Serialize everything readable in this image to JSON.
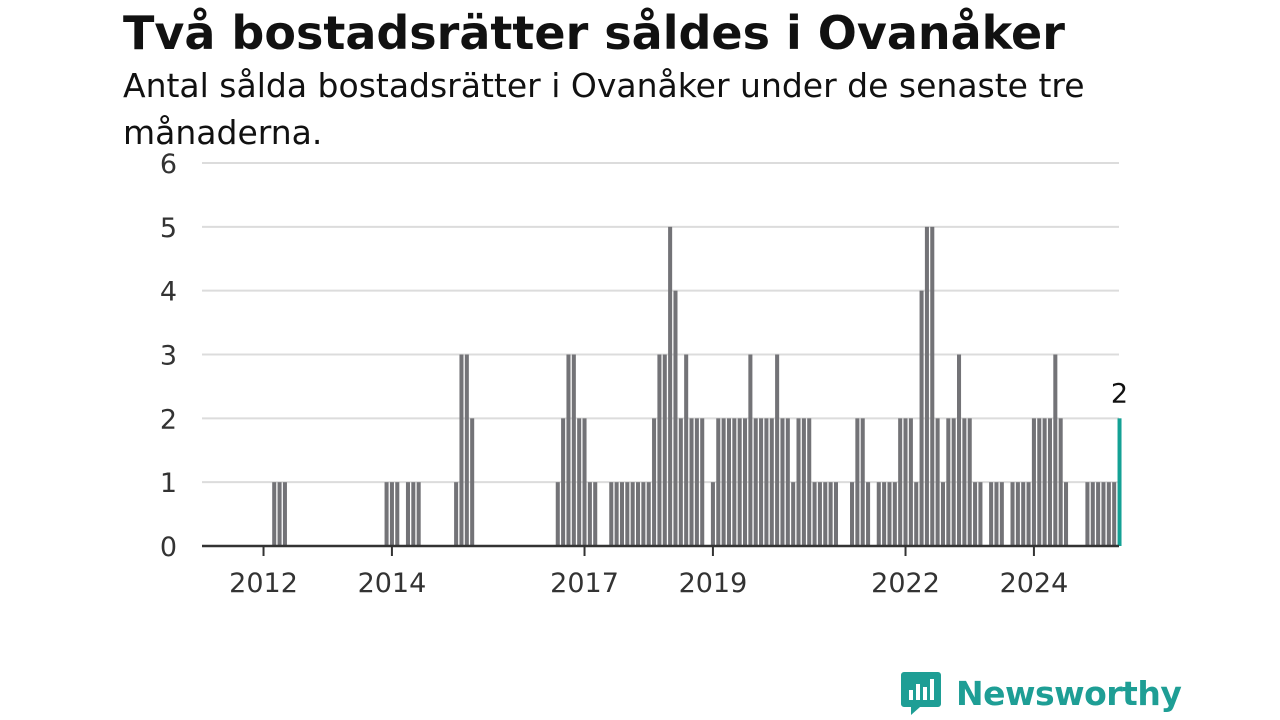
{
  "header": {
    "title": "Två bostadsrätter såldes i Ovanåker",
    "subtitle": "Antal sålda bostadsrätter i Ovanåker under de senaste tre månaderna."
  },
  "brand": {
    "name": "Newsworthy",
    "color": "#1e9e95"
  },
  "chart_data": {
    "type": "bar",
    "title": "Två bostadsrätter såldes i Ovanåker",
    "subtitle": "Antal sålda bostadsrätter i Ovanåker under de senaste tre månaderna.",
    "xlabel": "",
    "ylabel": "",
    "ylim": [
      0,
      6
    ],
    "yticks": [
      0,
      1,
      2,
      3,
      4,
      5,
      6
    ],
    "x_start": "2011-01",
    "x_ticks": [
      {
        "label": "2012",
        "month": "2012-01"
      },
      {
        "label": "2014",
        "month": "2014-01"
      },
      {
        "label": "2017",
        "month": "2017-01"
      },
      {
        "label": "2019",
        "month": "2019-01"
      },
      {
        "label": "2022",
        "month": "2022-01"
      },
      {
        "label": "2024",
        "month": "2024-01"
      }
    ],
    "grid": true,
    "legend": "none",
    "bar_color": "#737377",
    "highlight_color": "#14a195",
    "highlight_label": "2",
    "series": [
      {
        "values": [
          {
            "month": "2012-02",
            "value": 1
          },
          {
            "month": "2012-03",
            "value": 1
          },
          {
            "month": "2012-04",
            "value": 1
          },
          {
            "month": "2013-11",
            "value": 1
          },
          {
            "month": "2013-12",
            "value": 1
          },
          {
            "month": "2014-01",
            "value": 1
          },
          {
            "month": "2014-03",
            "value": 1
          },
          {
            "month": "2014-04",
            "value": 1
          },
          {
            "month": "2014-05",
            "value": 1
          },
          {
            "month": "2014-12",
            "value": 1
          },
          {
            "month": "2015-01",
            "value": 3
          },
          {
            "month": "2015-02",
            "value": 3
          },
          {
            "month": "2015-03",
            "value": 2
          },
          {
            "month": "2016-07",
            "value": 1
          },
          {
            "month": "2016-08",
            "value": 2
          },
          {
            "month": "2016-09",
            "value": 3
          },
          {
            "month": "2016-10",
            "value": 3
          },
          {
            "month": "2016-11",
            "value": 2
          },
          {
            "month": "2016-12",
            "value": 2
          },
          {
            "month": "2017-01",
            "value": 1
          },
          {
            "month": "2017-02",
            "value": 1
          },
          {
            "month": "2017-05",
            "value": 1
          },
          {
            "month": "2017-06",
            "value": 1
          },
          {
            "month": "2017-07",
            "value": 1
          },
          {
            "month": "2017-08",
            "value": 1
          },
          {
            "month": "2017-09",
            "value": 1
          },
          {
            "month": "2017-10",
            "value": 1
          },
          {
            "month": "2017-11",
            "value": 1
          },
          {
            "month": "2017-12",
            "value": 1
          },
          {
            "month": "2018-01",
            "value": 2
          },
          {
            "month": "2018-02",
            "value": 3
          },
          {
            "month": "2018-03",
            "value": 3
          },
          {
            "month": "2018-04",
            "value": 5
          },
          {
            "month": "2018-05",
            "value": 4
          },
          {
            "month": "2018-06",
            "value": 2
          },
          {
            "month": "2018-07",
            "value": 3
          },
          {
            "month": "2018-08",
            "value": 2
          },
          {
            "month": "2018-09",
            "value": 2
          },
          {
            "month": "2018-10",
            "value": 2
          },
          {
            "month": "2018-12",
            "value": 1
          },
          {
            "month": "2019-01",
            "value": 2
          },
          {
            "month": "2019-02",
            "value": 2
          },
          {
            "month": "2019-03",
            "value": 2
          },
          {
            "month": "2019-04",
            "value": 2
          },
          {
            "month": "2019-05",
            "value": 2
          },
          {
            "month": "2019-06",
            "value": 2
          },
          {
            "month": "2019-07",
            "value": 3
          },
          {
            "month": "2019-08",
            "value": 2
          },
          {
            "month": "2019-09",
            "value": 2
          },
          {
            "month": "2019-10",
            "value": 2
          },
          {
            "month": "2019-11",
            "value": 2
          },
          {
            "month": "2019-12",
            "value": 3
          },
          {
            "month": "2020-01",
            "value": 2
          },
          {
            "month": "2020-02",
            "value": 2
          },
          {
            "month": "2020-03",
            "value": 1
          },
          {
            "month": "2020-04",
            "value": 2
          },
          {
            "month": "2020-05",
            "value": 2
          },
          {
            "month": "2020-06",
            "value": 2
          },
          {
            "month": "2020-07",
            "value": 1
          },
          {
            "month": "2020-08",
            "value": 1
          },
          {
            "month": "2020-09",
            "value": 1
          },
          {
            "month": "2020-10",
            "value": 1
          },
          {
            "month": "2020-11",
            "value": 1
          },
          {
            "month": "2021-02",
            "value": 1
          },
          {
            "month": "2021-03",
            "value": 2
          },
          {
            "month": "2021-04",
            "value": 2
          },
          {
            "month": "2021-05",
            "value": 1
          },
          {
            "month": "2021-07",
            "value": 1
          },
          {
            "month": "2021-08",
            "value": 1
          },
          {
            "month": "2021-09",
            "value": 1
          },
          {
            "month": "2021-10",
            "value": 1
          },
          {
            "month": "2021-11",
            "value": 2
          },
          {
            "month": "2021-12",
            "value": 2
          },
          {
            "month": "2022-01",
            "value": 2
          },
          {
            "month": "2022-02",
            "value": 1
          },
          {
            "month": "2022-03",
            "value": 4
          },
          {
            "month": "2022-04",
            "value": 5
          },
          {
            "month": "2022-05",
            "value": 5
          },
          {
            "month": "2022-06",
            "value": 2
          },
          {
            "month": "2022-07",
            "value": 1
          },
          {
            "month": "2022-08",
            "value": 2
          },
          {
            "month": "2022-09",
            "value": 2
          },
          {
            "month": "2022-10",
            "value": 3
          },
          {
            "month": "2022-11",
            "value": 2
          },
          {
            "month": "2022-12",
            "value": 2
          },
          {
            "month": "2023-01",
            "value": 1
          },
          {
            "month": "2023-02",
            "value": 1
          },
          {
            "month": "2023-04",
            "value": 1
          },
          {
            "month": "2023-05",
            "value": 1
          },
          {
            "month": "2023-06",
            "value": 1
          },
          {
            "month": "2023-08",
            "value": 1
          },
          {
            "month": "2023-09",
            "value": 1
          },
          {
            "month": "2023-10",
            "value": 1
          },
          {
            "month": "2023-11",
            "value": 1
          },
          {
            "month": "2023-12",
            "value": 2
          },
          {
            "month": "2024-01",
            "value": 2
          },
          {
            "month": "2024-02",
            "value": 2
          },
          {
            "month": "2024-03",
            "value": 2
          },
          {
            "month": "2024-04",
            "value": 3
          },
          {
            "month": "2024-05",
            "value": 2
          },
          {
            "month": "2024-06",
            "value": 1
          },
          {
            "month": "2024-10",
            "value": 1
          },
          {
            "month": "2024-11",
            "value": 1
          },
          {
            "month": "2024-12",
            "value": 1
          },
          {
            "month": "2025-01",
            "value": 1
          },
          {
            "month": "2025-02",
            "value": 1
          },
          {
            "month": "2025-03",
            "value": 1
          },
          {
            "month": "2025-04",
            "value": 2,
            "highlight": true
          }
        ]
      }
    ]
  }
}
